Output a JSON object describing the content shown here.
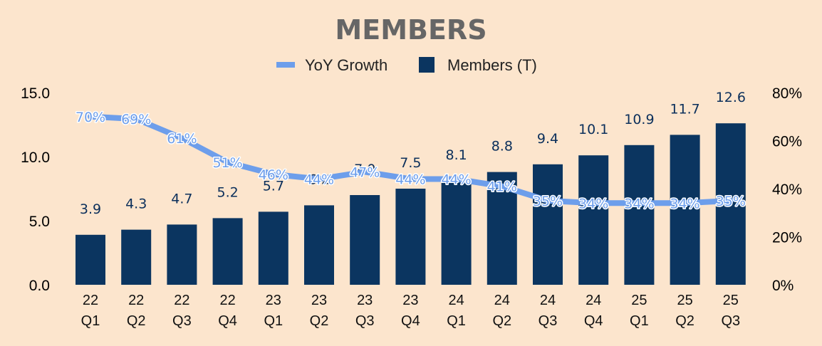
{
  "chart_data": {
    "type": "bar",
    "title": "MEMBERS",
    "categories": [
      [
        "22",
        "Q1"
      ],
      [
        "22",
        "Q2"
      ],
      [
        "22",
        "Q3"
      ],
      [
        "22",
        "Q4"
      ],
      [
        "23",
        "Q1"
      ],
      [
        "23",
        "Q2"
      ],
      [
        "23",
        "Q3"
      ],
      [
        "23",
        "Q4"
      ],
      [
        "24",
        "Q1"
      ],
      [
        "24",
        "Q2"
      ],
      [
        "24",
        "Q3"
      ],
      [
        "24",
        "Q4"
      ],
      [
        "25",
        "Q1"
      ],
      [
        "25",
        "Q2"
      ],
      [
        "25",
        "Q3"
      ]
    ],
    "series": [
      {
        "name": "Members (T)",
        "type": "bar",
        "axis": "left",
        "color": "#0b3560",
        "values": [
          3.9,
          4.3,
          4.7,
          5.2,
          5.7,
          6.2,
          7.0,
          7.5,
          8.1,
          8.8,
          9.4,
          10.1,
          10.9,
          11.7,
          12.6
        ],
        "labels": [
          "3.9",
          "4.3",
          "4.7",
          "5.2",
          "5.7",
          "6.2",
          "7.0",
          "7.5",
          "8.1",
          "8.8",
          "9.4",
          "10.1",
          "10.9",
          "11.7",
          "12.6"
        ]
      },
      {
        "name": "YoY Growth",
        "type": "line",
        "axis": "right",
        "color": "#6d9eeb",
        "values": [
          70,
          69,
          61,
          51,
          46,
          44,
          47,
          44,
          44,
          41,
          35,
          34,
          34,
          34,
          35
        ],
        "labels": [
          "70%",
          "69%",
          "61%",
          "51%",
          "46%",
          "44%",
          "47%",
          "44%",
          "44%",
          "41%",
          "35%",
          "34%",
          "34%",
          "34%",
          "35%"
        ]
      }
    ],
    "y_left": {
      "min": 0,
      "max": 15,
      "ticks": [
        "0.0",
        "5.0",
        "10.0",
        "15.0"
      ],
      "tick_values": [
        0,
        5,
        10,
        15
      ]
    },
    "y_right": {
      "min": 0,
      "max": 80,
      "ticks": [
        "0%",
        "20%",
        "40%",
        "60%",
        "80%"
      ],
      "tick_values": [
        0,
        20,
        40,
        60,
        80
      ]
    },
    "legend": {
      "position": "top",
      "items": [
        "YoY Growth",
        "Members (T)"
      ]
    },
    "grid": false
  }
}
